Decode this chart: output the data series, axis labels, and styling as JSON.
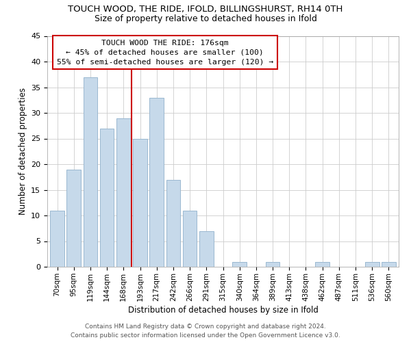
{
  "title": "TOUCH WOOD, THE RIDE, IFOLD, BILLINGSHURST, RH14 0TH",
  "subtitle": "Size of property relative to detached houses in Ifold",
  "xlabel": "Distribution of detached houses by size in Ifold",
  "ylabel": "Number of detached properties",
  "bar_color": "#c6d9ea",
  "bar_edge_color": "#9ab8d0",
  "categories": [
    "70sqm",
    "95sqm",
    "119sqm",
    "144sqm",
    "168sqm",
    "193sqm",
    "217sqm",
    "242sqm",
    "266sqm",
    "291sqm",
    "315sqm",
    "340sqm",
    "364sqm",
    "389sqm",
    "413sqm",
    "438sqm",
    "462sqm",
    "487sqm",
    "511sqm",
    "536sqm",
    "560sqm"
  ],
  "values": [
    11,
    19,
    37,
    27,
    29,
    25,
    33,
    17,
    11,
    7,
    0,
    1,
    0,
    1,
    0,
    0,
    1,
    0,
    0,
    1,
    1
  ],
  "ylim": [
    0,
    45
  ],
  "yticks": [
    0,
    5,
    10,
    15,
    20,
    25,
    30,
    35,
    40,
    45
  ],
  "vline_x": 4.5,
  "vline_color": "#cc0000",
  "annotation_title": "TOUCH WOOD THE RIDE: 176sqm",
  "annotation_line1": "← 45% of detached houses are smaller (100)",
  "annotation_line2": "55% of semi-detached houses are larger (120) →",
  "footer_line1": "Contains HM Land Registry data © Crown copyright and database right 2024.",
  "footer_line2": "Contains public sector information licensed under the Open Government Licence v3.0.",
  "background_color": "#ffffff",
  "grid_color": "#cccccc"
}
